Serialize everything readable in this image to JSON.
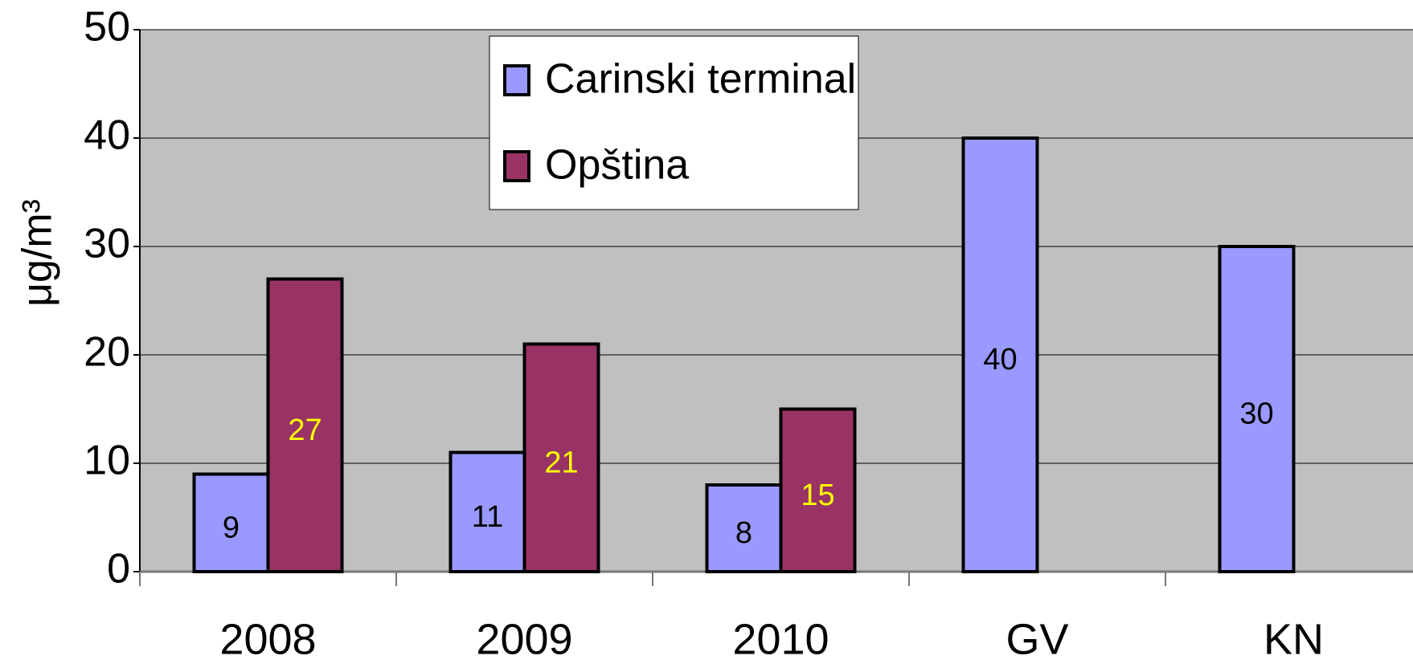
{
  "chart_data": {
    "type": "bar",
    "y_label": "μg/m³",
    "categories": [
      "2008",
      "2009",
      "2010",
      "GV",
      "KN"
    ],
    "series": [
      {
        "name": "Carinski terminal",
        "color": "#9999ff",
        "label_color": "#000000",
        "values": [
          9,
          11,
          8,
          40,
          30
        ]
      },
      {
        "name": "Opština",
        "color": "#993366",
        "label_color": "#ffff00",
        "values": [
          27,
          21,
          15,
          null,
          null
        ]
      }
    ],
    "ylim": [
      0,
      50
    ],
    "yticks": [
      0,
      10,
      20,
      30,
      40,
      50
    ],
    "grid": true,
    "legend": "top"
  }
}
